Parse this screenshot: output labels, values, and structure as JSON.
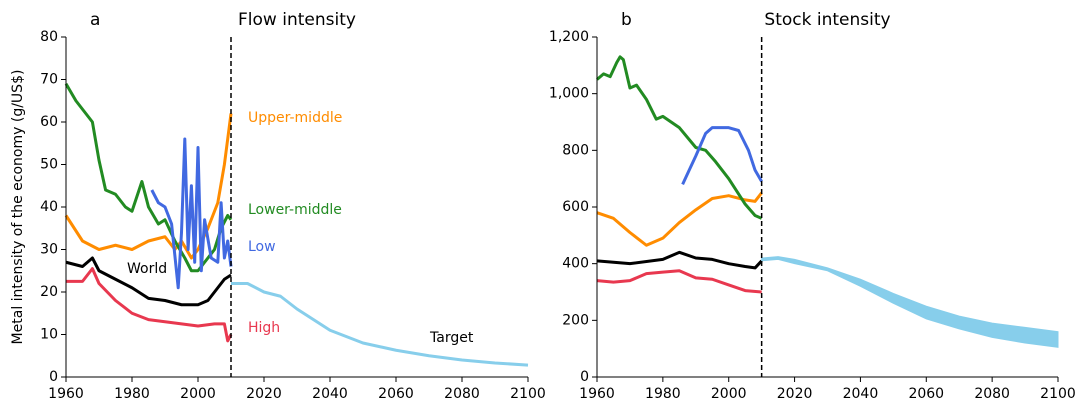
{
  "chart_data": [
    {
      "type": "line",
      "panel": "a",
      "title": "Flow intensity",
      "ylabel": "Metal intensity of the economy (g/US$)",
      "xlim": [
        1960,
        2100
      ],
      "ylim": [
        0,
        80
      ],
      "xticks": [
        1960,
        1980,
        2000,
        2020,
        2040,
        2060,
        2080,
        2100
      ],
      "yticks": [
        0,
        10,
        20,
        30,
        40,
        50,
        60,
        70,
        80
      ],
      "vline": 2010,
      "series": [
        {
          "name": "World",
          "color": "#000000",
          "x": [
            1960,
            1965,
            1968,
            1970,
            1975,
            1980,
            1985,
            1990,
            1995,
            2000,
            2003,
            2006,
            2008,
            2010
          ],
          "values": [
            27,
            26,
            28,
            25,
            23,
            21,
            18.5,
            18,
            17,
            17,
            18,
            21,
            23,
            24
          ]
        },
        {
          "name": "High",
          "color": "#e8384f",
          "x": [
            1960,
            1965,
            1968,
            1970,
            1975,
            1980,
            1985,
            1990,
            1995,
            2000,
            2005,
            2008,
            2009,
            2010
          ],
          "values": [
            22.5,
            22.5,
            25.5,
            22,
            18,
            15,
            13.5,
            13,
            12.5,
            12,
            12.5,
            12.5,
            8.5,
            10
          ]
        },
        {
          "name": "Upper-middle",
          "color": "#ff8c00",
          "x": [
            1960,
            1965,
            1970,
            1975,
            1980,
            1985,
            1990,
            1993,
            1995,
            1998,
            2000,
            2003,
            2006,
            2008,
            2010
          ],
          "values": [
            38,
            32,
            30,
            31,
            30,
            32,
            33,
            30,
            32,
            28,
            30,
            35,
            41,
            50,
            62
          ]
        },
        {
          "name": "Lower-middle",
          "color": "#228b22",
          "x": [
            1960,
            1963,
            1966,
            1968,
            1970,
            1972,
            1975,
            1978,
            1980,
            1983,
            1985,
            1988,
            1990,
            1993,
            1996,
            1998,
            2000,
            2003,
            2005,
            2007,
            2009,
            2010
          ],
          "values": [
            69,
            65,
            62,
            60,
            51,
            44,
            43,
            40,
            39,
            46,
            40,
            36,
            37,
            32,
            28,
            25,
            25,
            28,
            30,
            35,
            38,
            37
          ]
        },
        {
          "name": "Low",
          "color": "#4169e1",
          "x": [
            1986,
            1988,
            1990,
            1992,
            1994,
            1995,
            1996,
            1997,
            1998,
            1999,
            2000,
            2001,
            2002,
            2004,
            2006,
            2007,
            2008,
            2009,
            2010
          ],
          "values": [
            44,
            41,
            40,
            36,
            21,
            34,
            56,
            30,
            45,
            27,
            54,
            25,
            37,
            28,
            27,
            41,
            28,
            32,
            26
          ]
        },
        {
          "name": "Target",
          "color": "#87ceeb",
          "x": [
            2010,
            2015,
            2020,
            2025,
            2030,
            2040,
            2050,
            2060,
            2070,
            2080,
            2090,
            2100
          ],
          "values": [
            22,
            22,
            20,
            19,
            16,
            11,
            8,
            6.3,
            5,
            4,
            3.3,
            2.8
          ]
        }
      ]
    },
    {
      "type": "line",
      "panel": "b",
      "title": "Stock intensity",
      "xlim": [
        1960,
        2100
      ],
      "ylim": [
        0,
        1200
      ],
      "xticks": [
        1960,
        1980,
        2000,
        2020,
        2040,
        2060,
        2080,
        2100
      ],
      "yticks": [
        0,
        200,
        400,
        600,
        800,
        {
          "value": 1000,
          "label": "1,000"
        },
        {
          "value": 1200,
          "label": "1,200"
        }
      ],
      "vline": 2010,
      "series": [
        {
          "color": "#000000",
          "x": [
            1960,
            1970,
            1980,
            1985,
            1990,
            1995,
            2000,
            2005,
            2008,
            2010
          ],
          "values": [
            410,
            400,
            415,
            440,
            420,
            415,
            400,
            390,
            385,
            410
          ]
        },
        {
          "color": "#e8384f",
          "x": [
            1960,
            1965,
            1970,
            1975,
            1980,
            1985,
            1990,
            1995,
            2000,
            2005,
            2010
          ],
          "values": [
            340,
            335,
            340,
            365,
            370,
            375,
            350,
            345,
            325,
            305,
            300
          ]
        },
        {
          "color": "#ff8c00",
          "x": [
            1960,
            1965,
            1970,
            1975,
            1980,
            1985,
            1990,
            1995,
            2000,
            2005,
            2008,
            2010
          ],
          "values": [
            580,
            560,
            510,
            465,
            490,
            545,
            590,
            630,
            640,
            625,
            620,
            650
          ]
        },
        {
          "color": "#228b22",
          "x": [
            1960,
            1962,
            1964,
            1966,
            1967,
            1968,
            1970,
            1972,
            1975,
            1978,
            1980,
            1985,
            1990,
            1993,
            1996,
            2000,
            2005,
            2008,
            2010
          ],
          "values": [
            1050,
            1070,
            1060,
            1110,
            1130,
            1120,
            1020,
            1030,
            980,
            910,
            920,
            880,
            810,
            800,
            760,
            700,
            610,
            570,
            560
          ]
        },
        {
          "color": "#4169e1",
          "x": [
            1986,
            1988,
            1990,
            1993,
            1995,
            1998,
            2000,
            2003,
            2006,
            2008,
            2010
          ],
          "values": [
            680,
            730,
            780,
            860,
            880,
            880,
            880,
            870,
            800,
            730,
            690
          ]
        },
        {
          "color": "#87ceeb",
          "x": [
            2010,
            2015,
            2020,
            2030,
            2040,
            2050,
            2060,
            2070,
            2080,
            2090,
            2100
          ],
          "lower": [
            410,
            415,
            400,
            375,
            320,
            260,
            205,
            170,
            140,
            120,
            105
          ],
          "upper": [
            420,
            425,
            415,
            385,
            345,
            295,
            250,
            215,
            190,
            175,
            160
          ]
        }
      ]
    }
  ]
}
